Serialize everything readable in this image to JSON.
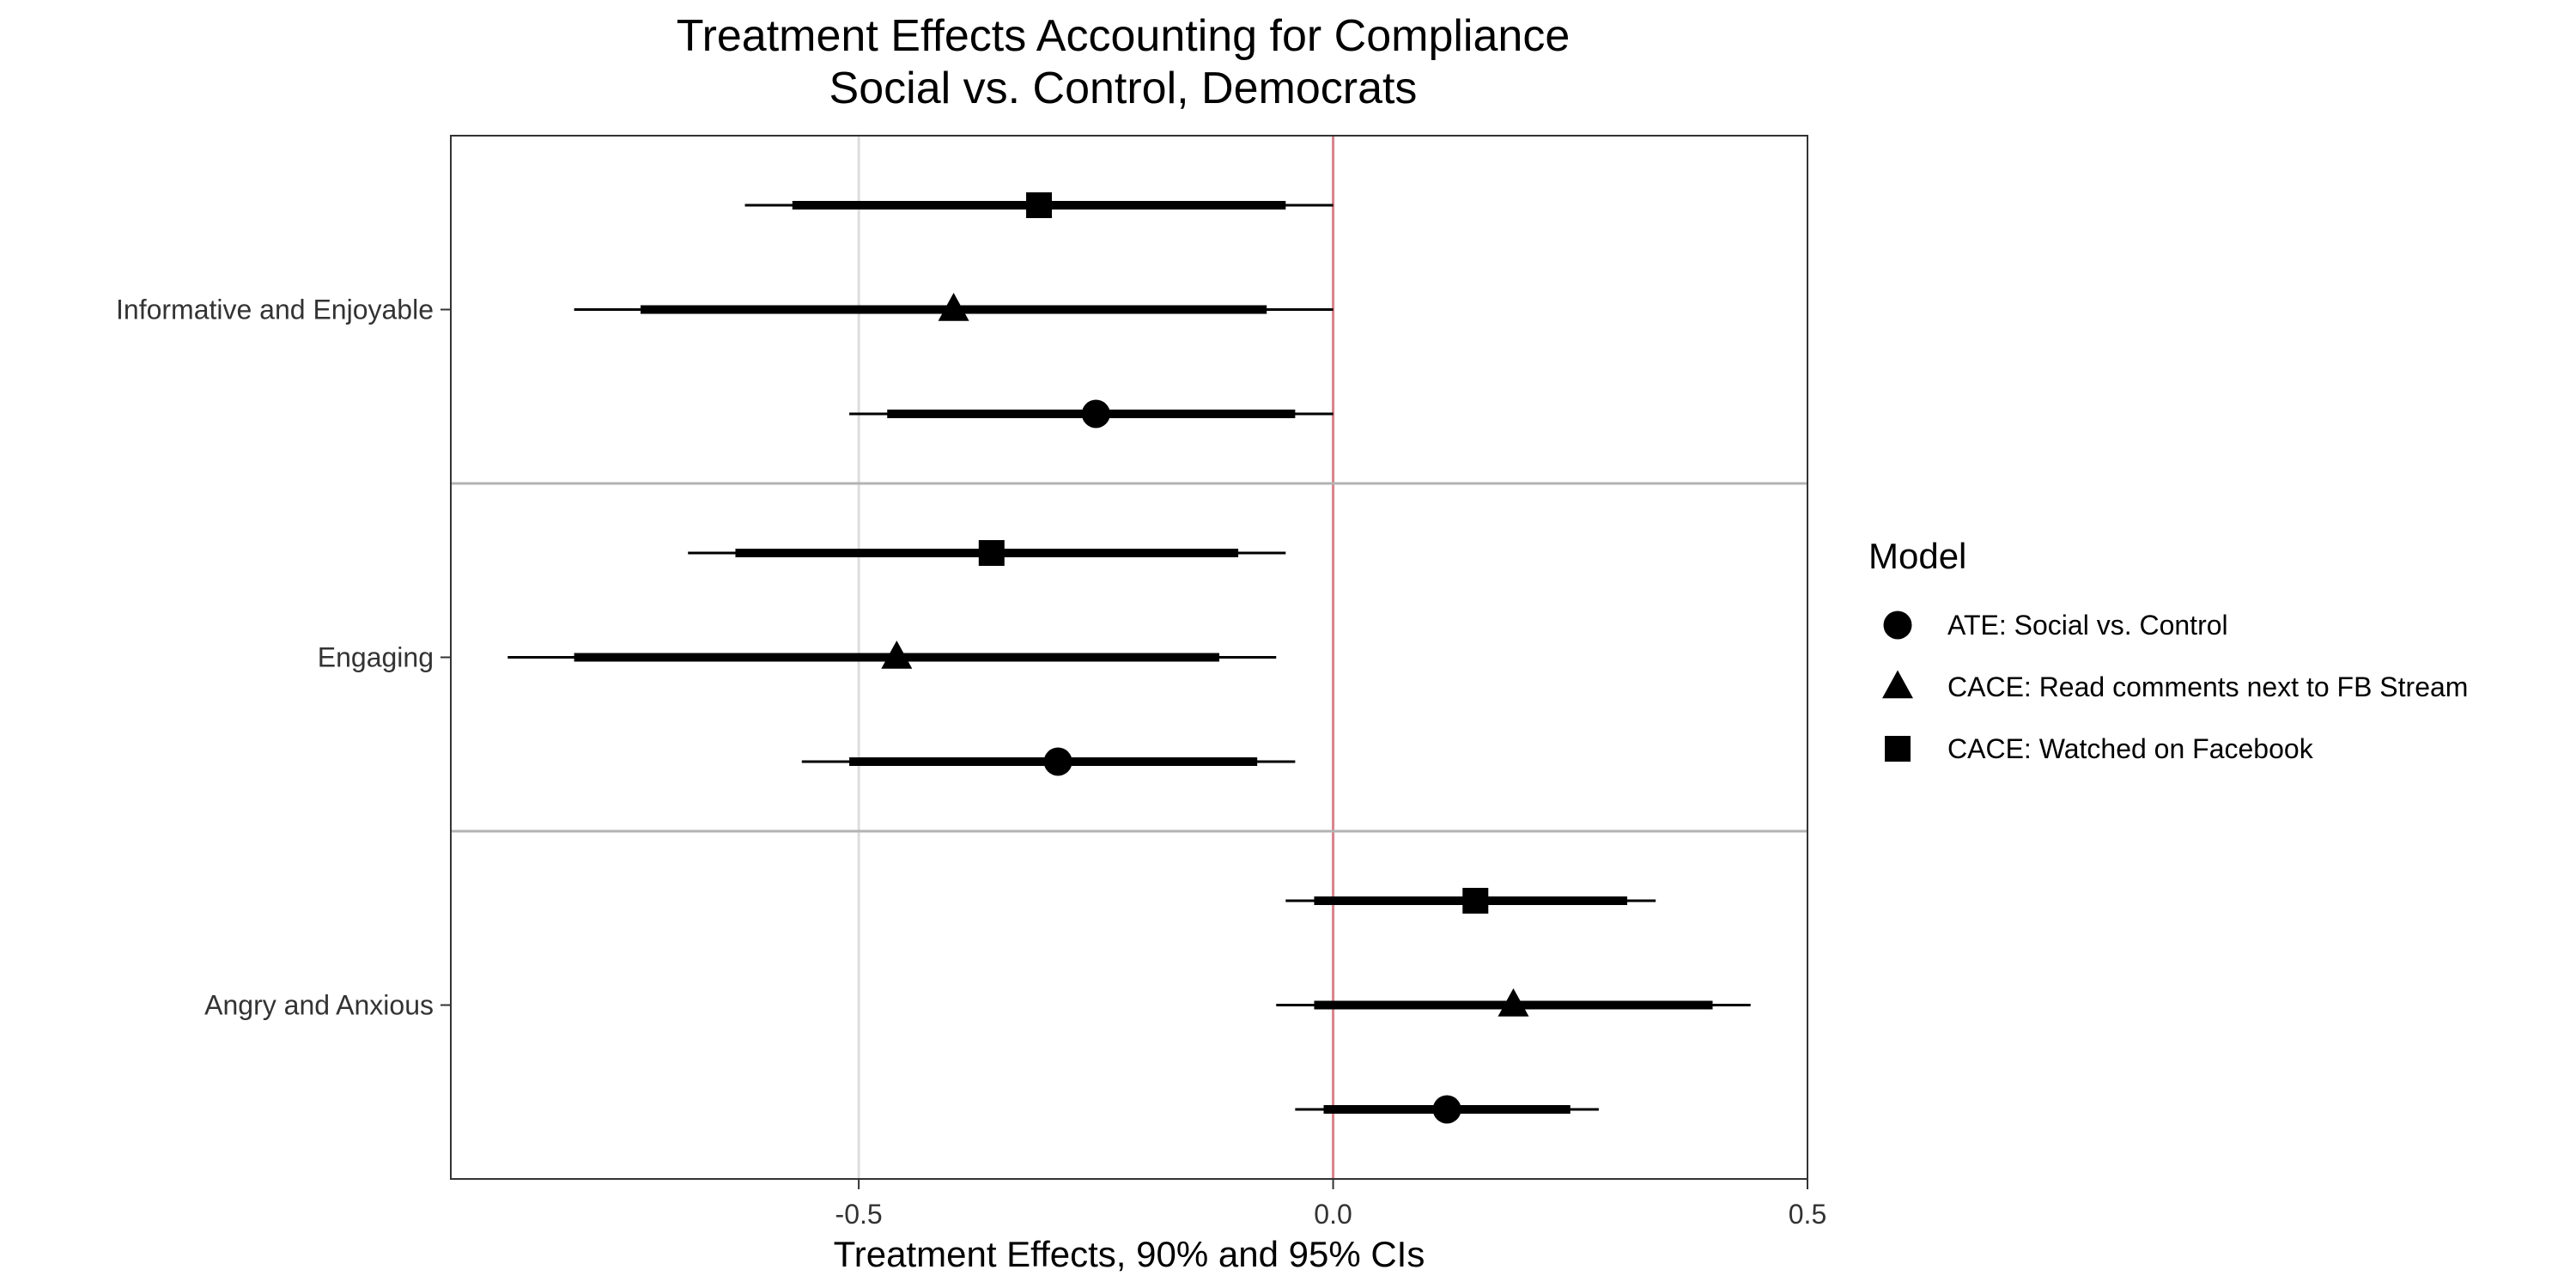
{
  "chart_data": {
    "type": "scatter",
    "subtype": "coefficient-plot",
    "title": "Treatment Effects Accounting for Compliance",
    "subtitle": "Social vs. Control, Democrats",
    "xlabel": "Treatment Effects, 90% and 95% CIs",
    "ylabel": "",
    "xlim": [
      -0.93,
      0.5
    ],
    "xticks": [
      -0.5,
      0.0,
      0.5
    ],
    "xtick_labels": [
      "-0.5",
      "0.0",
      "0.5"
    ],
    "reference_lines": [
      {
        "x": -0.5,
        "color": "#dddddd"
      },
      {
        "x": 0.0,
        "color": "#d9838c"
      }
    ],
    "grid": false,
    "legend_position": "right",
    "categories": [
      "Informative and Enjoyable",
      "Engaging",
      "Angry and Anxious"
    ],
    "legend": {
      "title": "Model",
      "entries": [
        {
          "label": "ATE: Social vs. Control",
          "shape": "circle"
        },
        {
          "label": "CACE: Read comments next to FB Stream",
          "shape": "triangle"
        },
        {
          "label": "CACE: Watched on Facebook",
          "shape": "square"
        }
      ]
    },
    "series": [
      {
        "name": "CACE: Watched on Facebook",
        "shape": "square",
        "points": [
          {
            "category": "Informative and Enjoyable",
            "estimate": -0.31,
            "ci90": [
              -0.57,
              -0.05
            ],
            "ci95": [
              -0.62,
              0.0
            ]
          },
          {
            "category": "Engaging",
            "estimate": -0.36,
            "ci90": [
              -0.63,
              -0.1
            ],
            "ci95": [
              -0.68,
              -0.05
            ]
          },
          {
            "category": "Angry and Anxious",
            "estimate": 0.15,
            "ci90": [
              -0.02,
              0.31
            ],
            "ci95": [
              -0.05,
              0.34
            ]
          }
        ]
      },
      {
        "name": "CACE: Read comments next to FB Stream",
        "shape": "triangle",
        "points": [
          {
            "category": "Informative and Enjoyable",
            "estimate": -0.4,
            "ci90": [
              -0.73,
              -0.07
            ],
            "ci95": [
              -0.8,
              0.0
            ]
          },
          {
            "category": "Engaging",
            "estimate": -0.46,
            "ci90": [
              -0.8,
              -0.12
            ],
            "ci95": [
              -0.87,
              -0.06
            ]
          },
          {
            "category": "Angry and Anxious",
            "estimate": 0.19,
            "ci90": [
              -0.02,
              0.4
            ],
            "ci95": [
              -0.06,
              0.44
            ]
          }
        ]
      },
      {
        "name": "ATE: Social vs. Control",
        "shape": "circle",
        "points": [
          {
            "category": "Informative and Enjoyable",
            "estimate": -0.25,
            "ci90": [
              -0.47,
              -0.04
            ],
            "ci95": [
              -0.51,
              0.0
            ]
          },
          {
            "category": "Engaging",
            "estimate": -0.29,
            "ci90": [
              -0.51,
              -0.08
            ],
            "ci95": [
              -0.56,
              -0.04
            ]
          },
          {
            "category": "Angry and Anxious",
            "estimate": 0.12,
            "ci90": [
              -0.01,
              0.25
            ],
            "ci95": [
              -0.04,
              0.28
            ]
          }
        ]
      }
    ]
  }
}
